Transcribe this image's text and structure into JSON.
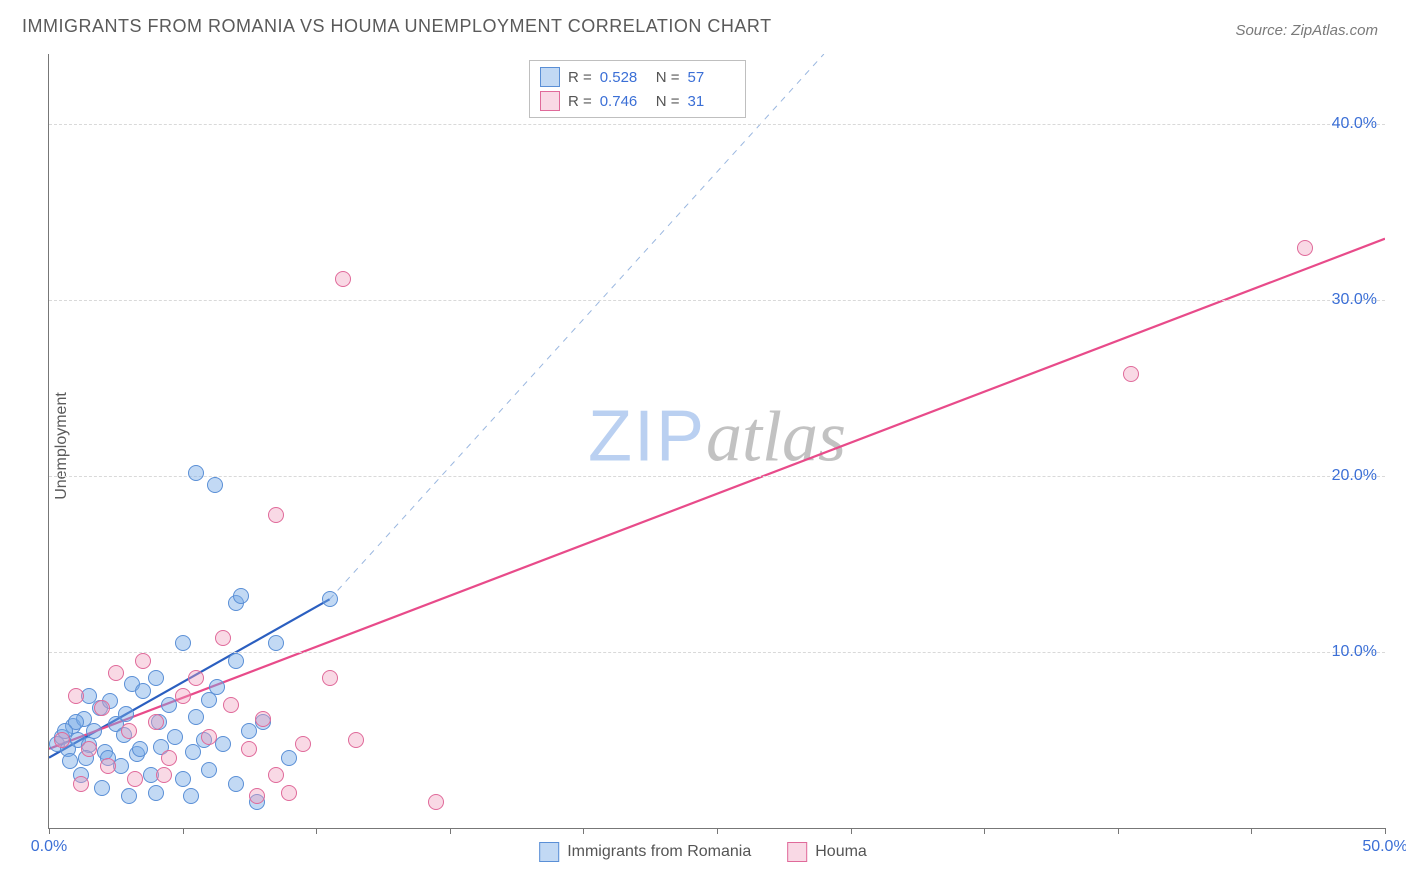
{
  "title": "IMMIGRANTS FROM ROMANIA VS HOUMA UNEMPLOYMENT CORRELATION CHART",
  "source": "Source: ZipAtlas.com",
  "ylabel": "Unemployment",
  "watermark": {
    "part1": "ZIP",
    "part2": "atlas"
  },
  "chart": {
    "type": "scatter",
    "background_color": "#ffffff",
    "grid_color": "#d9d9d9",
    "axis_color": "#777777",
    "tick_label_color": "#3b6fd6",
    "xlim": [
      0,
      50
    ],
    "ylim": [
      0,
      44
    ],
    "yticks": [
      10,
      20,
      30,
      40
    ],
    "ytick_labels": [
      "10.0%",
      "20.0%",
      "30.0%",
      "40.0%"
    ],
    "xticks": [
      0,
      5,
      10,
      15,
      20,
      25,
      30,
      35,
      40,
      45,
      50
    ],
    "xtick_labels": {
      "0": "0.0%",
      "50": "50.0%"
    },
    "point_radius": 8,
    "point_border_width": 1,
    "series": [
      {
        "name": "Immigrants from Romania",
        "fill": "rgba(120,170,230,0.45)",
        "stroke": "#5a8fd6",
        "R": "0.528",
        "N": "57",
        "trend": {
          "x1": 0,
          "y1": 4.0,
          "x2": 10.5,
          "y2": 13.0,
          "color": "#2b5fc0",
          "width": 2.2,
          "dash": ""
        },
        "trend_ext": {
          "x1": 10.5,
          "y1": 13.0,
          "x2": 29.0,
          "y2": 44.0,
          "color": "#9ab7e0",
          "width": 1,
          "dash": "6,6"
        },
        "points": [
          [
            0.3,
            4.8
          ],
          [
            0.5,
            5.2
          ],
          [
            0.7,
            4.5
          ],
          [
            0.9,
            5.8
          ],
          [
            1.1,
            5.0
          ],
          [
            1.3,
            6.2
          ],
          [
            1.5,
            4.7
          ],
          [
            1.7,
            5.5
          ],
          [
            1.9,
            6.8
          ],
          [
            2.1,
            4.3
          ],
          [
            2.3,
            7.2
          ],
          [
            2.5,
            5.9
          ],
          [
            2.7,
            3.5
          ],
          [
            2.9,
            6.5
          ],
          [
            3.1,
            8.2
          ],
          [
            3.3,
            4.2
          ],
          [
            3.5,
            7.8
          ],
          [
            3.8,
            3.0
          ],
          [
            4.0,
            8.5
          ],
          [
            4.2,
            4.6
          ],
          [
            4.5,
            7.0
          ],
          [
            5.0,
            2.8
          ],
          [
            5.0,
            10.5
          ],
          [
            5.3,
            1.8
          ],
          [
            5.5,
            6.3
          ],
          [
            5.8,
            5.0
          ],
          [
            6.0,
            3.3
          ],
          [
            6.3,
            8.0
          ],
          [
            6.5,
            4.8
          ],
          [
            7.0,
            9.5
          ],
          [
            7.0,
            2.5
          ],
          [
            7.5,
            5.5
          ],
          [
            7.8,
            1.5
          ],
          [
            8.0,
            6.0
          ],
          [
            8.5,
            10.5
          ],
          [
            9.0,
            4.0
          ],
          [
            5.5,
            20.2
          ],
          [
            6.2,
            19.5
          ],
          [
            7.0,
            12.8
          ],
          [
            7.2,
            13.2
          ],
          [
            4.0,
            2.0
          ],
          [
            3.0,
            1.8
          ],
          [
            2.0,
            2.3
          ],
          [
            1.2,
            3.0
          ],
          [
            0.8,
            3.8
          ],
          [
            1.5,
            7.5
          ],
          [
            2.2,
            4.0
          ],
          [
            2.8,
            5.3
          ],
          [
            3.4,
            4.5
          ],
          [
            4.1,
            6.0
          ],
          [
            4.7,
            5.2
          ],
          [
            5.4,
            4.3
          ],
          [
            6.0,
            7.3
          ],
          [
            1.0,
            6.0
          ],
          [
            1.4,
            4.0
          ],
          [
            0.6,
            5.5
          ],
          [
            10.5,
            13.0
          ]
        ]
      },
      {
        "name": "Houma",
        "fill": "rgba(240,160,190,0.40)",
        "stroke": "#e06a9a",
        "R": "0.746",
        "N": "31",
        "trend": {
          "x1": 0,
          "y1": 4.5,
          "x2": 50,
          "y2": 33.5,
          "color": "#e84b8a",
          "width": 2.2,
          "dash": ""
        },
        "points": [
          [
            0.5,
            5.0
          ],
          [
            1.0,
            7.5
          ],
          [
            1.5,
            4.5
          ],
          [
            2.0,
            6.8
          ],
          [
            2.5,
            8.8
          ],
          [
            3.0,
            5.5
          ],
          [
            3.5,
            9.5
          ],
          [
            4.0,
            6.0
          ],
          [
            4.5,
            4.0
          ],
          [
            5.0,
            7.5
          ],
          [
            5.5,
            8.5
          ],
          [
            6.0,
            5.2
          ],
          [
            6.8,
            7.0
          ],
          [
            7.5,
            4.5
          ],
          [
            8.0,
            6.2
          ],
          [
            8.5,
            3.0
          ],
          [
            9.0,
            2.0
          ],
          [
            9.5,
            4.8
          ],
          [
            10.5,
            8.5
          ],
          [
            11.5,
            5.0
          ],
          [
            8.5,
            17.8
          ],
          [
            11.0,
            31.2
          ],
          [
            14.5,
            1.5
          ],
          [
            47.0,
            33.0
          ],
          [
            40.5,
            25.8
          ],
          [
            1.2,
            2.5
          ],
          [
            2.2,
            3.5
          ],
          [
            3.2,
            2.8
          ],
          [
            4.3,
            3.0
          ],
          [
            6.5,
            10.8
          ],
          [
            7.8,
            1.8
          ]
        ]
      }
    ]
  },
  "stats_legend": {
    "R_label": "R =",
    "N_label": "N ="
  },
  "bottom_legend_items": [
    "Immigrants from Romania",
    "Houma"
  ]
}
